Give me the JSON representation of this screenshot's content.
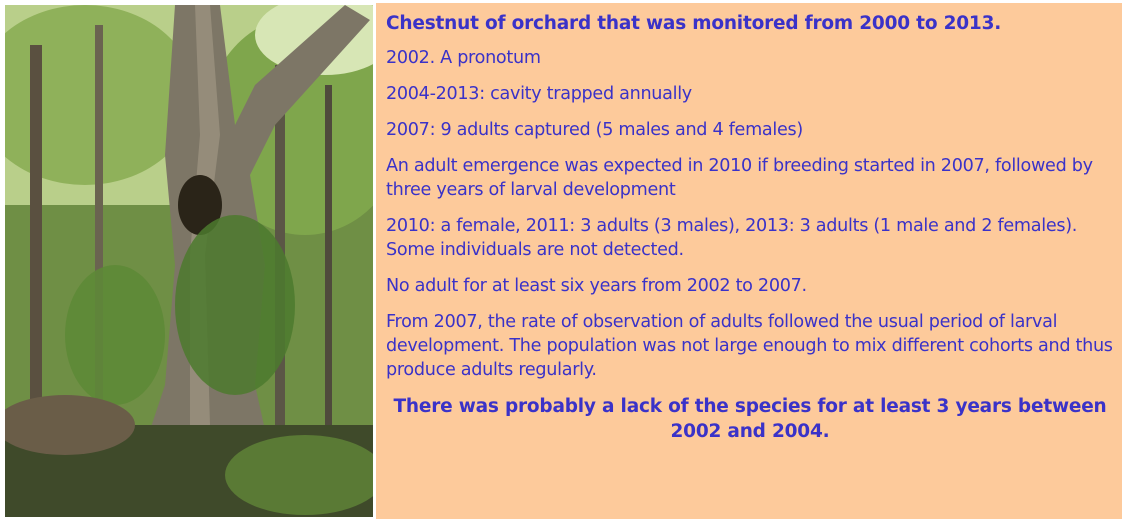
{
  "slide": {
    "title": "Chestnut of orchard that was monitored from 2000 to 2013.",
    "items": [
      "2002. A pronotum",
      "2004-2013: cavity trapped annually",
      "2007: 9 adults captured (5 males and 4 females)",
      "An adult emergence was expected in 2010 if breeding started in 2007, followed by three years of larval development",
      "2010: a female, 2011: 3 adults (3 males), 2013: 3 adults (1 male and 2 females). Some individuals are not detected.",
      "No adult for at least six years from 2002 to 2007.",
      "From 2007, the rate of observation of adults followed the usual period of larval development. The population was not large enough to mix different cohorts and thus produce adults regularly."
    ],
    "conclusion": "There was probably a lack of the species for at least 3 years between 2002 and 2004."
  }
}
